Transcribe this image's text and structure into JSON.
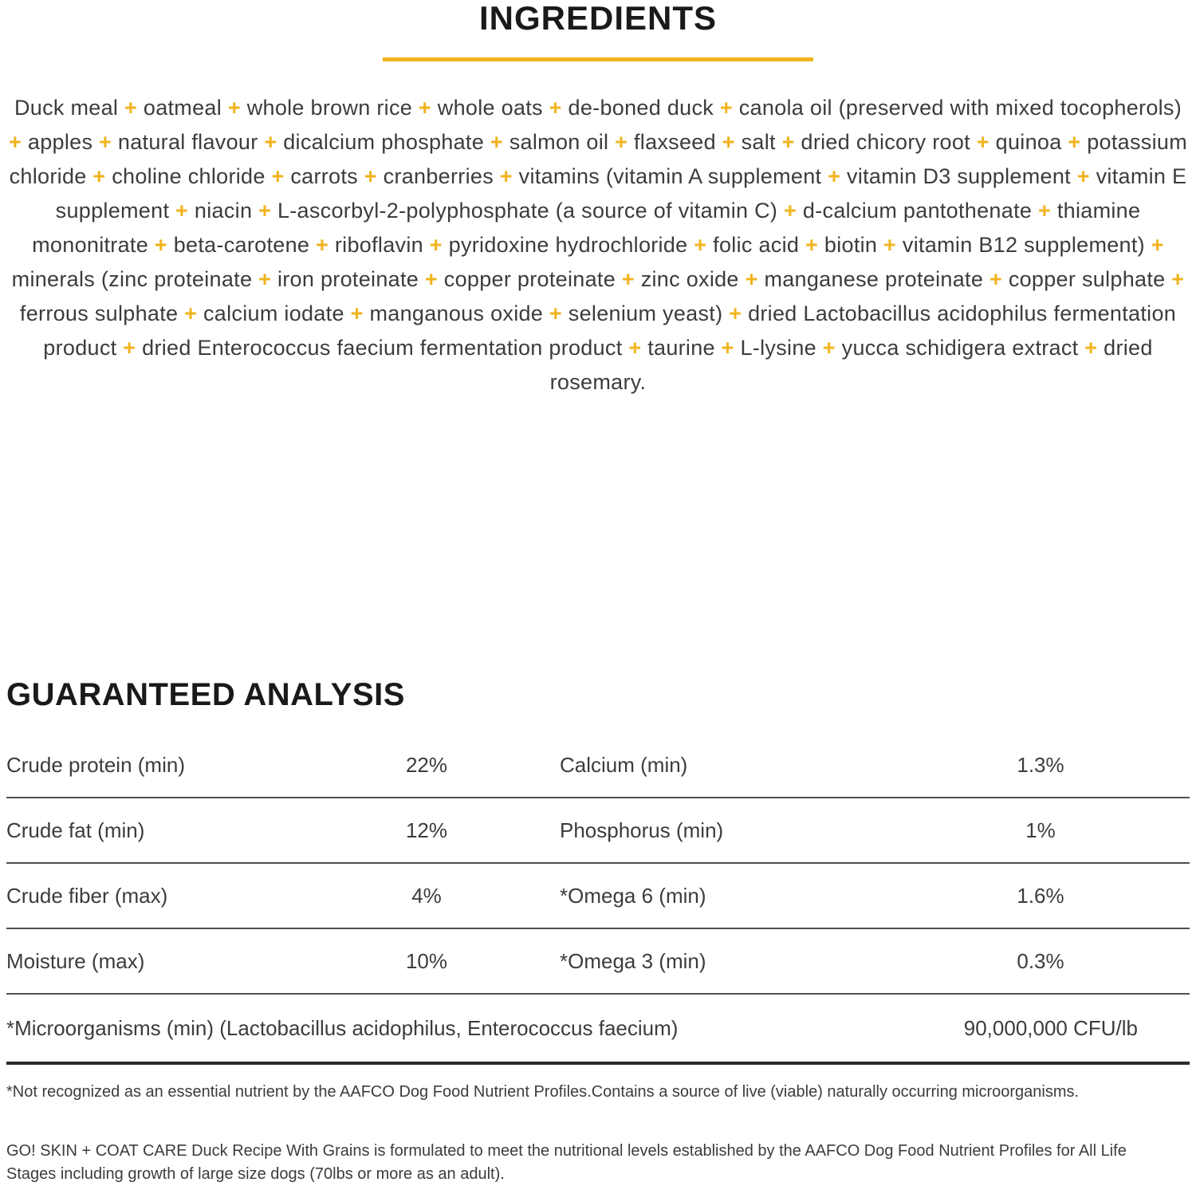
{
  "colors": {
    "accent_gold": "#f1b31e",
    "body_text": "#3c3c3c",
    "heading_text": "#1a1a1a",
    "divider": "#4f4f4f",
    "divider_strong": "#2a2a2a"
  },
  "ingredients": {
    "title": "INGREDIENTS",
    "separator": "+",
    "items": [
      "Duck meal",
      "oatmeal",
      "whole brown rice",
      "whole oats",
      "de-boned duck",
      "canola oil (preserved with mixed tocopherols)",
      "apples",
      "natural flavour",
      "dicalcium phosphate",
      "salmon oil",
      "flaxseed",
      "salt",
      "dried chicory root",
      "quinoa",
      "potassium chloride",
      "choline chloride",
      "carrots",
      "cranberries",
      "vitamins (vitamin A supplement",
      "vitamin D3 supplement",
      "vitamin E supplement",
      "niacin",
      "L-ascorbyl-2-polyphosphate (a source of vitamin C)",
      "d-calcium pantothenate",
      "thiamine mononitrate",
      "beta-carotene",
      "riboflavin",
      "pyridoxine hydrochloride",
      "folic acid",
      "biotin",
      "vitamin B12 supplement)",
      "minerals (zinc proteinate",
      "iron proteinate",
      "copper proteinate",
      "zinc oxide",
      "manganese proteinate",
      "copper sulphate",
      "ferrous sulphate",
      "calcium iodate",
      "manganous oxide",
      "selenium yeast)",
      "dried Lactobacillus acidophilus fermentation product",
      "dried Enterococcus faecium fermentation product",
      "taurine",
      "L-lysine",
      "yucca schidigera extract",
      "dried rosemary."
    ]
  },
  "guaranteed_analysis": {
    "title": "GUARANTEED ANALYSIS",
    "rows": [
      {
        "left_label": "Crude protein (min)",
        "left_value": "22%",
        "right_label": "Calcium (min)",
        "right_value": "1.3%"
      },
      {
        "left_label": "Crude fat (min)",
        "left_value": "12%",
        "right_label": "Phosphorus (min)",
        "right_value": "1%"
      },
      {
        "left_label": "Crude fiber (max)",
        "left_value": "4%",
        "right_label": "*Omega 6 (min)",
        "right_value": "1.6%"
      },
      {
        "left_label": "Moisture (max)",
        "left_value": "10%",
        "right_label": "*Omega 3 (min)",
        "right_value": "0.3%"
      }
    ],
    "microorganisms_row": {
      "label": "*Microorganisms (min) (Lactobacillus acidophilus, Enterococcus faecium)",
      "value": "90,000,000 CFU/lb"
    }
  },
  "footnotes": [
    "*Not recognized as an essential nutrient by the AAFCO Dog Food Nutrient Profiles.Contains a source of live (viable) naturally occurring microorganisms.",
    "GO! SKIN + COAT CARE Duck Recipe With Grains is formulated to meet the nutritional levels established by the AAFCO Dog Food Nutrient Profiles for All Life Stages including growth of large size dogs (70lbs or more as an adult)."
  ]
}
